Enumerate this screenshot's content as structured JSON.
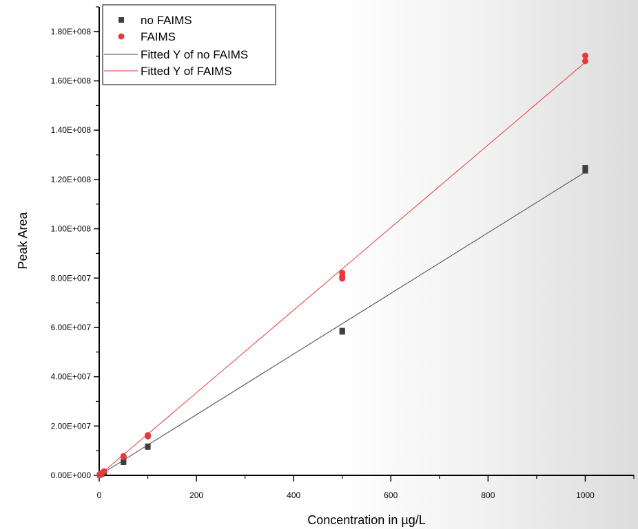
{
  "chart_data": {
    "type": "scatter",
    "title": "",
    "xlabel": "Concentration in µg/L",
    "ylabel": "Peak Area",
    "xlim": [
      0,
      1100
    ],
    "ylim": [
      0,
      190000000
    ],
    "x_ticks": [
      0,
      200,
      400,
      600,
      800,
      1000
    ],
    "x_tick_labels": [
      "0",
      "200",
      "400",
      "600",
      "800",
      "1000"
    ],
    "y_ticks": [
      0,
      20000000,
      40000000,
      60000000,
      80000000,
      100000000,
      120000000,
      140000000,
      160000000,
      180000000
    ],
    "y_tick_labels": [
      "0.00E+000",
      "2.00E+007",
      "4.00E+007",
      "6.00E+007",
      "8.00E+007",
      "1.00E+008",
      "1.20E+008",
      "1.40E+008",
      "1.60E+008",
      "1.80E+008"
    ],
    "legend_position": "top-left",
    "grid": false,
    "series": [
      {
        "name": "no FAIMS",
        "kind": "points",
        "marker": "square",
        "color": "#3f3f3f",
        "points": [
          [
            1,
            150000
          ],
          [
            5,
            600000
          ],
          [
            10,
            1200000
          ],
          [
            50,
            5300000
          ],
          [
            50,
            5600000
          ],
          [
            100,
            11500000
          ],
          [
            100,
            11800000
          ],
          [
            500,
            58200000
          ],
          [
            500,
            58700000
          ],
          [
            1000,
            123500000
          ],
          [
            1000,
            124200000
          ],
          [
            1000,
            124700000
          ]
        ]
      },
      {
        "name": "FAIMS",
        "kind": "points",
        "marker": "circle",
        "color": "#e53a3a",
        "points": [
          [
            1,
            200000
          ],
          [
            5,
            800000
          ],
          [
            10,
            1600000
          ],
          [
            50,
            7500000
          ],
          [
            50,
            7800000
          ],
          [
            100,
            15800000
          ],
          [
            100,
            16300000
          ],
          [
            500,
            79800000
          ],
          [
            500,
            80600000
          ],
          [
            500,
            82100000
          ],
          [
            1000,
            168000000
          ],
          [
            1000,
            170200000
          ]
        ]
      },
      {
        "name": "Fitted Y of no FAIMS",
        "kind": "line",
        "color": "#444444",
        "points": [
          [
            0,
            0
          ],
          [
            1000,
            123000000
          ]
        ]
      },
      {
        "name": "Fitted Y of FAIMS",
        "kind": "line",
        "color": "#e53a3a",
        "points": [
          [
            0,
            0
          ],
          [
            1000,
            167500000
          ]
        ]
      }
    ]
  }
}
